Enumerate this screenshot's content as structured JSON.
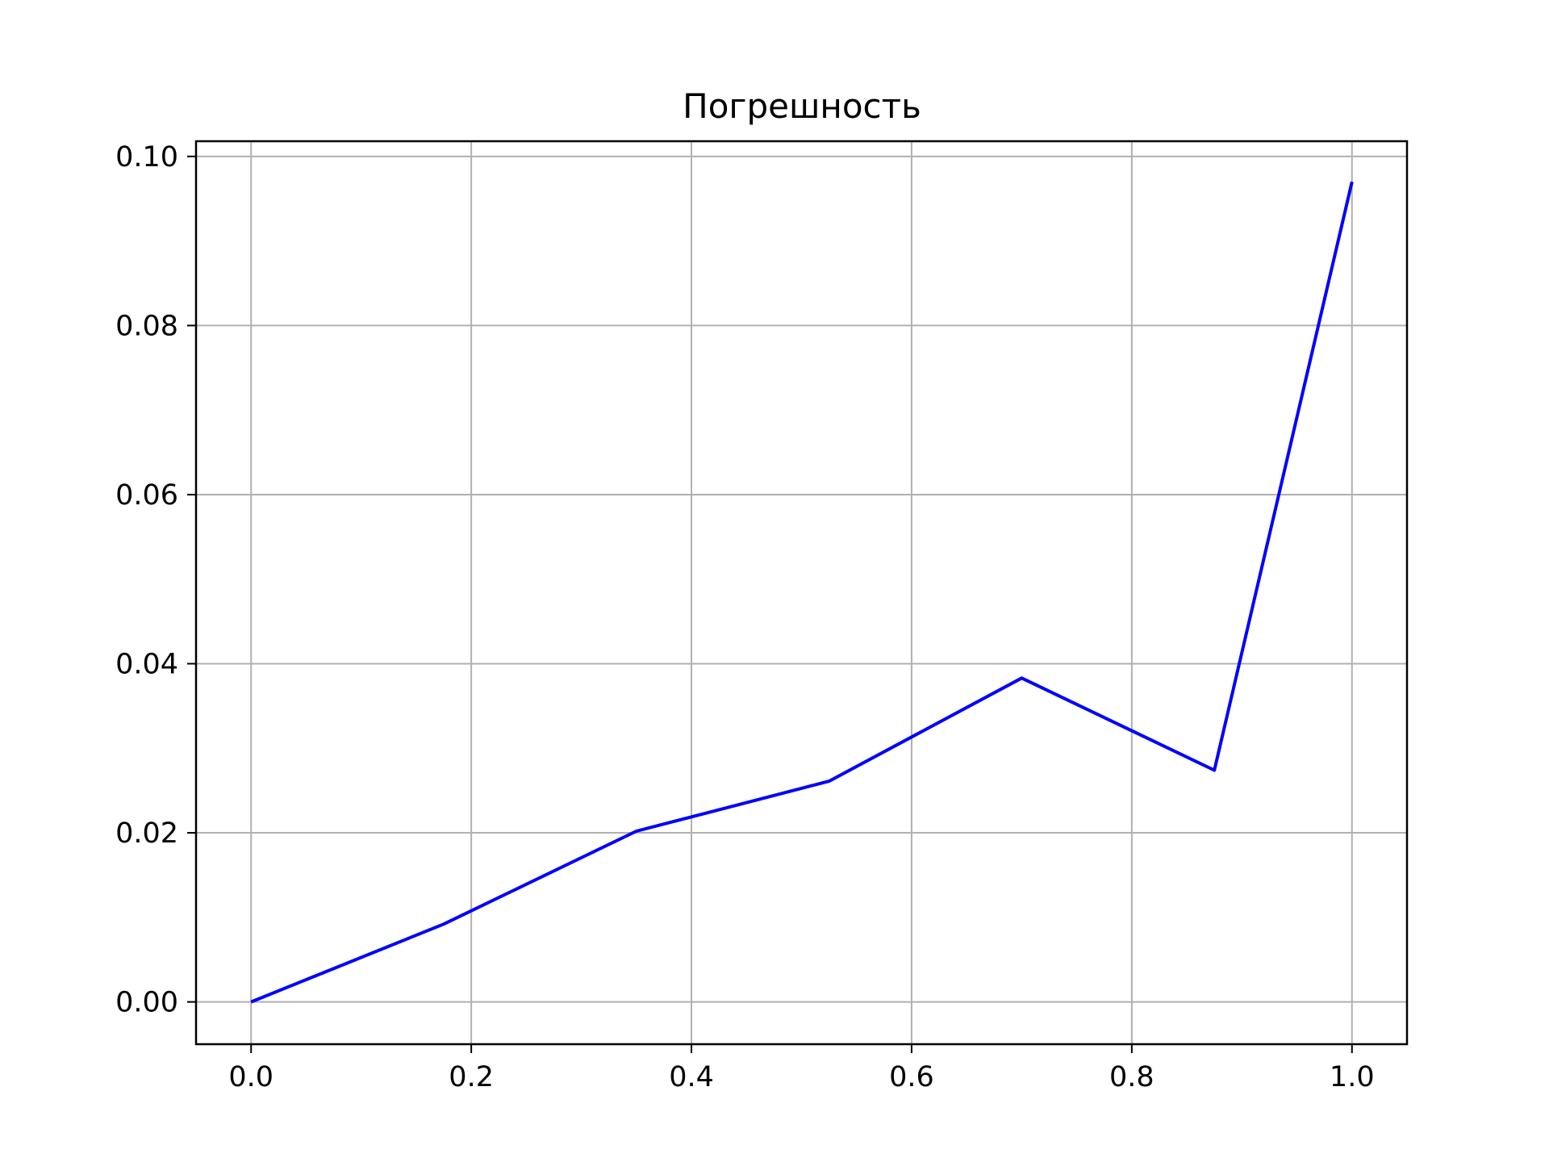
{
  "chart_data": {
    "type": "line",
    "title": "Погрешность",
    "xlabel": "",
    "ylabel": "",
    "x": [
      0.0,
      0.175,
      0.35,
      0.525,
      0.7,
      0.875,
      1.0
    ],
    "series": [
      {
        "values": [
          0.0,
          0.0092,
          0.0202,
          0.0261,
          0.0383,
          0.0274,
          0.097
        ]
      }
    ],
    "xlim": [
      -0.05,
      1.05
    ],
    "ylim": [
      -0.005,
      0.1018
    ],
    "xticks": [
      0.0,
      0.2,
      0.4,
      0.6,
      0.8,
      1.0
    ],
    "xtick_labels": [
      "0.0",
      "0.2",
      "0.4",
      "0.6",
      "0.8",
      "1.0"
    ],
    "yticks": [
      0.0,
      0.02,
      0.04,
      0.06,
      0.08,
      0.1
    ],
    "ytick_labels": [
      "0.00",
      "0.02",
      "0.04",
      "0.06",
      "0.08",
      "0.10"
    ],
    "grid": true,
    "colors": {
      "line": "#0000ff",
      "grid": "#b0b0b0",
      "axes": "#000000"
    }
  }
}
